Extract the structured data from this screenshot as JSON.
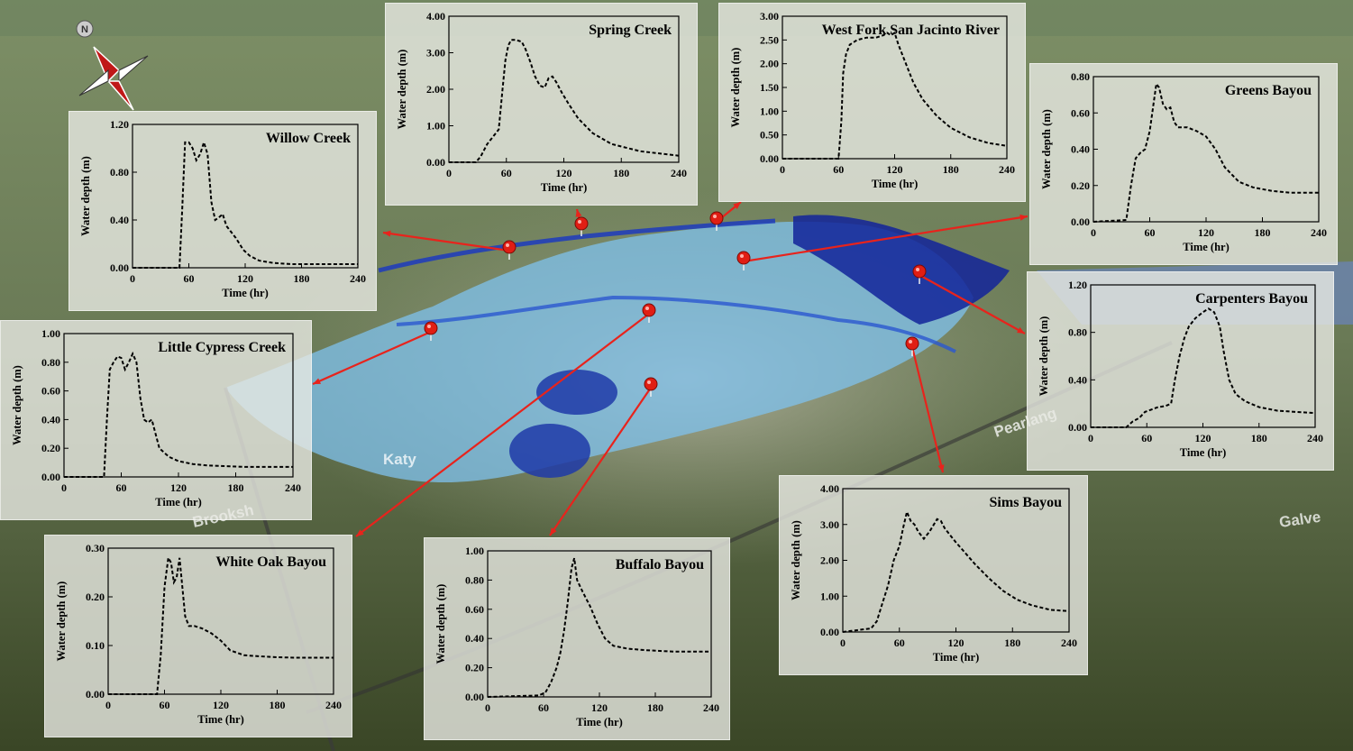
{
  "chart_data": [
    {
      "type": "line",
      "title": "Spring Creek",
      "xlabel": "Time (hr)",
      "ylabel": "Water depth (m)",
      "xlim": [
        0,
        240
      ],
      "ylim": [
        0,
        4
      ],
      "xticks": [
        0,
        60,
        120,
        180,
        240
      ],
      "yticks": [
        0,
        1,
        2,
        3,
        4
      ],
      "ydecimals": 2,
      "x": [
        0,
        28,
        33,
        40,
        46,
        52,
        56,
        59,
        62,
        65,
        70,
        76,
        80,
        85,
        90,
        95,
        100,
        104,
        108,
        112,
        118,
        125,
        135,
        150,
        170,
        200,
        240
      ],
      "y": [
        0,
        0,
        0.15,
        0.5,
        0.7,
        0.9,
        2.0,
        2.8,
        3.2,
        3.35,
        3.35,
        3.3,
        3.1,
        2.75,
        2.35,
        2.1,
        2.05,
        2.3,
        2.35,
        2.2,
        1.9,
        1.6,
        1.2,
        0.8,
        0.5,
        0.3,
        0.18
      ]
    },
    {
      "type": "line",
      "title": "West Fork San Jacinto River",
      "xlabel": "Time (hr)",
      "ylabel": "Water depth (m)",
      "xlim": [
        0,
        240
      ],
      "ylim": [
        0,
        3
      ],
      "xticks": [
        0,
        60,
        120,
        180,
        240
      ],
      "yticks": [
        0,
        0.5,
        1,
        1.5,
        2,
        2.5,
        3
      ],
      "ydecimals": 2,
      "x": [
        0,
        60,
        63,
        65,
        68,
        72,
        80,
        90,
        100,
        108,
        112,
        116,
        120,
        124,
        130,
        140,
        150,
        165,
        180,
        200,
        220,
        240
      ],
      "y": [
        0,
        0,
        0.8,
        1.8,
        2.2,
        2.4,
        2.5,
        2.55,
        2.55,
        2.6,
        2.65,
        2.6,
        2.65,
        2.4,
        2.1,
        1.6,
        1.25,
        0.9,
        0.65,
        0.45,
        0.33,
        0.27
      ]
    },
    {
      "type": "line",
      "title": "Greens Bayou",
      "xlabel": "Time (hr)",
      "ylabel": "Water depth (m)",
      "xlim": [
        0,
        240
      ],
      "ylim": [
        0,
        0.8
      ],
      "xticks": [
        0,
        60,
        120,
        180,
        240
      ],
      "yticks": [
        0,
        0.2,
        0.4,
        0.6,
        0.8
      ],
      "ydecimals": 2,
      "x": [
        0,
        35,
        40,
        45,
        50,
        55,
        60,
        64,
        67,
        70,
        74,
        78,
        82,
        86,
        90,
        100,
        110,
        120,
        130,
        140,
        155,
        170,
        190,
        210,
        240
      ],
      "y": [
        0,
        0.01,
        0.2,
        0.35,
        0.38,
        0.4,
        0.5,
        0.65,
        0.76,
        0.74,
        0.65,
        0.62,
        0.63,
        0.55,
        0.52,
        0.52,
        0.5,
        0.47,
        0.4,
        0.3,
        0.22,
        0.19,
        0.17,
        0.16,
        0.16
      ]
    },
    {
      "type": "line",
      "title": "Willow Creek",
      "xlabel": "Time (hr)",
      "ylabel": "Water depth (m)",
      "xlim": [
        0,
        240
      ],
      "ylim": [
        0,
        1.2
      ],
      "xticks": [
        0,
        60,
        120,
        180,
        240
      ],
      "yticks": [
        0,
        0.4,
        0.8,
        1.2
      ],
      "ydecimals": 2,
      "x": [
        0,
        50,
        53,
        56,
        60,
        64,
        68,
        72,
        76,
        80,
        84,
        88,
        92,
        96,
        100,
        105,
        110,
        118,
        125,
        135,
        150,
        170,
        200,
        240
      ],
      "y": [
        0,
        0,
        0.5,
        1.05,
        1.05,
        1.0,
        0.9,
        0.95,
        1.05,
        0.95,
        0.55,
        0.4,
        0.42,
        0.45,
        0.35,
        0.3,
        0.25,
        0.15,
        0.1,
        0.06,
        0.04,
        0.03,
        0.03,
        0.03
      ]
    },
    {
      "type": "line",
      "title": "Carpenters Bayou",
      "xlabel": "Time (hr)",
      "ylabel": "Water depth (m)",
      "xlim": [
        0,
        240
      ],
      "ylim": [
        0,
        1.2
      ],
      "xticks": [
        0,
        60,
        120,
        180,
        240
      ],
      "yticks": [
        0,
        0.4,
        0.8,
        1.2
      ],
      "ydecimals": 2,
      "x": [
        0,
        38,
        45,
        52,
        58,
        65,
        72,
        80,
        86,
        90,
        95,
        100,
        105,
        112,
        120,
        126,
        132,
        138,
        142,
        148,
        155,
        165,
        180,
        200,
        220,
        240
      ],
      "y": [
        0,
        0,
        0.05,
        0.08,
        0.13,
        0.15,
        0.17,
        0.18,
        0.2,
        0.4,
        0.6,
        0.75,
        0.85,
        0.92,
        0.97,
        1.0,
        0.97,
        0.85,
        0.65,
        0.4,
        0.28,
        0.22,
        0.17,
        0.14,
        0.13,
        0.12
      ]
    },
    {
      "type": "line",
      "title": "Little Cypress Creek",
      "xlabel": "Time (hr)",
      "ylabel": "Water depth (m)",
      "xlim": [
        0,
        240
      ],
      "ylim": [
        0,
        1
      ],
      "xticks": [
        0,
        60,
        120,
        180,
        240
      ],
      "yticks": [
        0,
        0.2,
        0.4,
        0.6,
        0.8,
        1
      ],
      "ydecimals": 2,
      "x": [
        0,
        42,
        45,
        48,
        52,
        56,
        60,
        64,
        68,
        72,
        76,
        80,
        84,
        88,
        92,
        96,
        100,
        110,
        120,
        135,
        150,
        170,
        190,
        220,
        240
      ],
      "y": [
        0,
        0,
        0.4,
        0.75,
        0.8,
        0.84,
        0.83,
        0.75,
        0.8,
        0.86,
        0.8,
        0.55,
        0.4,
        0.38,
        0.4,
        0.3,
        0.2,
        0.14,
        0.11,
        0.09,
        0.08,
        0.075,
        0.07,
        0.07,
        0.07
      ]
    },
    {
      "type": "line",
      "title": "White Oak Bayou",
      "xlabel": "Time (hr)",
      "ylabel": "Water depth (m)",
      "xlim": [
        0,
        240
      ],
      "ylim": [
        0,
        0.3
      ],
      "xticks": [
        0,
        60,
        120,
        180,
        240
      ],
      "yticks": [
        0,
        0.1,
        0.2,
        0.3
      ],
      "ydecimals": 2,
      "x": [
        0,
        52,
        56,
        60,
        64,
        67,
        70,
        73,
        76,
        79,
        82,
        86,
        92,
        100,
        110,
        120,
        130,
        145,
        160,
        180,
        200,
        220,
        240
      ],
      "y": [
        0,
        0,
        0.08,
        0.22,
        0.28,
        0.27,
        0.23,
        0.24,
        0.28,
        0.22,
        0.16,
        0.14,
        0.14,
        0.135,
        0.125,
        0.11,
        0.09,
        0.08,
        0.078,
        0.076,
        0.075,
        0.075,
        0.075
      ]
    },
    {
      "type": "line",
      "title": "Buffalo Bayou",
      "xlabel": "Time (hr)",
      "ylabel": "Water depth (m)",
      "xlim": [
        0,
        240
      ],
      "ylim": [
        0,
        1
      ],
      "xticks": [
        0,
        60,
        120,
        180,
        240
      ],
      "yticks": [
        0,
        0.2,
        0.4,
        0.6,
        0.8,
        1
      ],
      "ydecimals": 2,
      "x": [
        0,
        55,
        62,
        68,
        74,
        78,
        82,
        86,
        90,
        93,
        96,
        102,
        110,
        118,
        126,
        135,
        150,
        170,
        200,
        240
      ],
      "y": [
        0,
        0.01,
        0.03,
        0.1,
        0.2,
        0.3,
        0.45,
        0.65,
        0.88,
        0.95,
        0.8,
        0.72,
        0.62,
        0.5,
        0.4,
        0.35,
        0.33,
        0.32,
        0.31,
        0.31
      ]
    },
    {
      "type": "line",
      "title": "Sims Bayou",
      "xlabel": "Time (hr)",
      "ylabel": "Water depth (m)",
      "xlim": [
        0,
        240
      ],
      "ylim": [
        0,
        4
      ],
      "xticks": [
        0,
        60,
        120,
        180,
        240
      ],
      "yticks": [
        0,
        1,
        2,
        3,
        4
      ],
      "ydecimals": 2,
      "x": [
        0,
        30,
        36,
        42,
        48,
        54,
        60,
        64,
        68,
        72,
        76,
        80,
        86,
        92,
        100,
        104,
        108,
        114,
        120,
        130,
        140,
        155,
        170,
        185,
        200,
        220,
        240
      ],
      "y": [
        0,
        0.1,
        0.3,
        0.8,
        1.3,
        2.0,
        2.4,
        2.9,
        3.35,
        3.1,
        3.0,
        2.8,
        2.6,
        2.8,
        3.15,
        3.1,
        2.9,
        2.7,
        2.5,
        2.2,
        1.9,
        1.5,
        1.15,
        0.9,
        0.75,
        0.62,
        0.58
      ]
    }
  ],
  "map": {
    "labels": [
      "Katy",
      "Brooksh",
      "Galve",
      "Pearlang"
    ],
    "compass": "N"
  },
  "colors": {
    "leader": "#e8231c",
    "flood_light": "#7fc2ee",
    "flood_dark": "#12239a",
    "pin": "#e01e14"
  }
}
